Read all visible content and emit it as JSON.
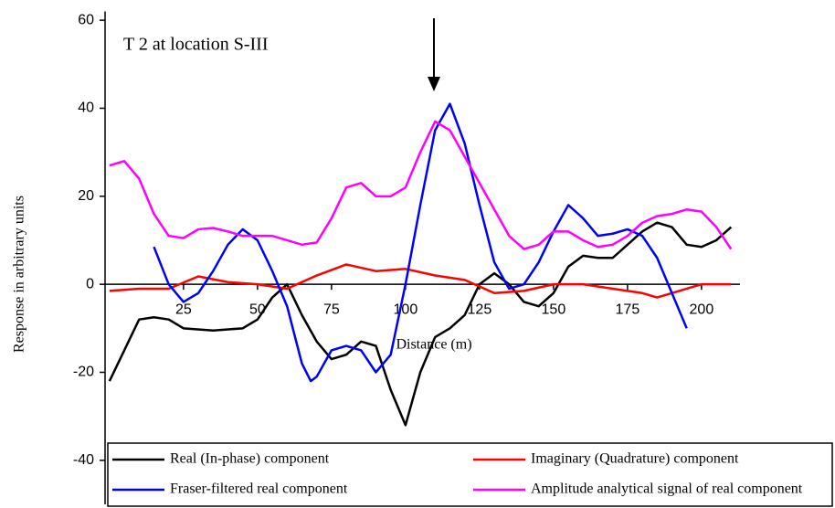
{
  "chart_data": {
    "type": "line",
    "annotation": "T 2 at location S-III",
    "xlabel": "Distance (m)",
    "ylabel": "Response in arbitrary units",
    "xlim": [
      -1.5,
      213
    ],
    "ylim": [
      -50,
      62
    ],
    "xticks": [
      25,
      50,
      75,
      100,
      125,
      150,
      175,
      200
    ],
    "yticks": [
      -40,
      -20,
      0,
      20,
      40,
      60
    ],
    "series": [
      {
        "name": "Real (In-phase) component",
        "color": "#000000",
        "x": [
          0,
          5,
          10,
          15,
          20,
          25,
          35,
          45,
          50,
          55,
          60,
          65,
          70,
          75,
          80,
          85,
          90,
          95,
          100,
          105,
          110,
          115,
          120,
          125,
          130,
          135,
          140,
          145,
          150,
          155,
          160,
          165,
          170,
          175,
          180,
          185,
          190,
          195,
          200,
          205,
          210
        ],
        "values": [
          -22,
          -15,
          -8,
          -7.5,
          -8,
          -10,
          -10.5,
          -10,
          -8,
          -3,
          0,
          -7,
          -13,
          -17,
          -16,
          -13,
          -14,
          -24,
          -32,
          -20,
          -12,
          -10,
          -7,
          0,
          2.5,
          0,
          -4,
          -5,
          -2,
          4,
          6.5,
          6,
          6,
          9,
          12,
          14,
          13,
          9,
          8.5,
          10,
          13
        ]
      },
      {
        "name": "Imaginary (Quadrature) component",
        "color": "#ff0000",
        "x": [
          0,
          10,
          20,
          30,
          40,
          50,
          60,
          70,
          80,
          90,
          100,
          110,
          120,
          130,
          140,
          150,
          160,
          170,
          180,
          185,
          190,
          200,
          210
        ],
        "values": [
          -1.5,
          -1,
          -1,
          1.8,
          0.5,
          0,
          -1,
          2,
          4.5,
          3,
          3.5,
          2,
          1,
          -2,
          -1.5,
          0,
          0,
          -1,
          -2,
          -3,
          -2,
          0,
          0
        ]
      },
      {
        "name": "Fraser-filtered real component",
        "color": "#0000ff",
        "x": [
          15,
          20,
          25,
          30,
          35,
          40,
          45,
          50,
          55,
          60,
          65,
          68,
          70,
          75,
          80,
          85,
          90,
          95,
          100,
          105,
          110,
          115,
          120,
          125,
          130,
          135,
          140,
          145,
          150,
          155,
          160,
          165,
          170,
          175,
          180,
          185,
          190,
          195
        ],
        "values": [
          8.5,
          0,
          -4,
          -2,
          3,
          9,
          12.5,
          10,
          3,
          -5,
          -18,
          -22,
          -21,
          -15,
          -14,
          -15,
          -20,
          -16,
          0,
          18,
          35,
          41,
          32,
          18,
          5,
          -1,
          0,
          5,
          12,
          18,
          15,
          11,
          11.5,
          12.5,
          11,
          6,
          -2,
          -10
        ]
      },
      {
        "name": "Amplitude analytical signal of real component",
        "color": "#ff00ff",
        "x": [
          0,
          5,
          10,
          15,
          20,
          25,
          30,
          35,
          40,
          45,
          55,
          60,
          65,
          70,
          75,
          80,
          85,
          90,
          95,
          100,
          105,
          110,
          115,
          120,
          125,
          130,
          135,
          140,
          145,
          150,
          155,
          160,
          165,
          170,
          175,
          180,
          185,
          190,
          195,
          200,
          205,
          210
        ],
        "values": [
          27,
          28,
          24,
          16,
          11,
          10.5,
          12.5,
          12.8,
          12,
          11,
          11,
          10,
          9,
          9.5,
          15,
          22,
          23,
          20,
          20,
          22,
          30,
          37,
          35,
          29,
          23,
          17,
          11,
          8,
          9,
          12,
          12,
          10,
          8.5,
          9,
          11,
          14,
          15.5,
          16,
          17,
          16.5,
          13,
          8
        ]
      }
    ]
  }
}
